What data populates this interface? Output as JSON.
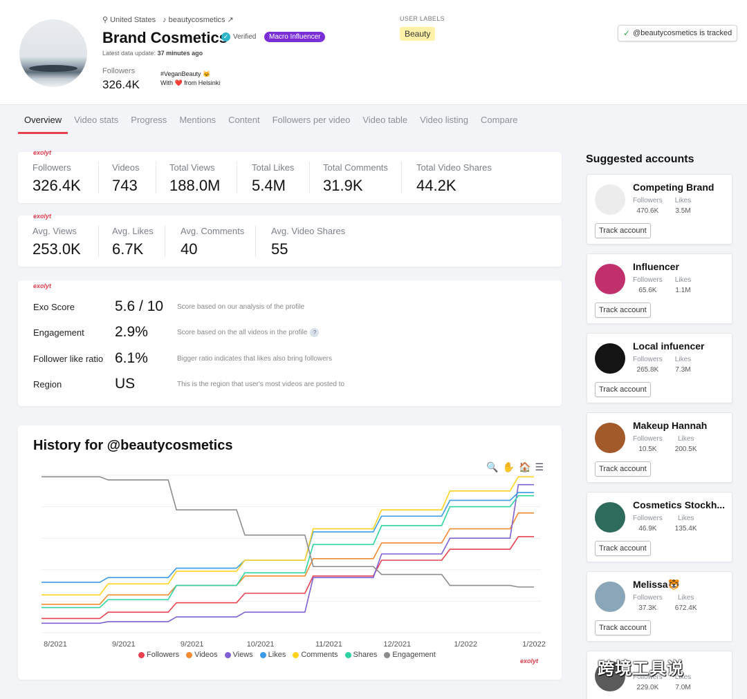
{
  "header": {
    "location": "United States",
    "handle": "beautycosmetics",
    "title": "Brand Cosmetics",
    "verified_label": "Verified",
    "badge": "Macro Influencer",
    "update_prefix": "Latest data update:",
    "update_value": "37 minutes ago",
    "followers_label": "Followers",
    "followers_value": "326.4K",
    "bio_line1": "#VeganBeauty 🐱",
    "bio_line2": "With ❤️ from Helsinki",
    "user_labels_title": "USER LABELS",
    "user_label": "Beauty",
    "tracked_text": "@beautycosmetics is tracked"
  },
  "tabs": [
    "Overview",
    "Video stats",
    "Progress",
    "Mentions",
    "Content",
    "Followers per video",
    "Video table",
    "Video listing",
    "Compare"
  ],
  "brand_tag": "exolyt",
  "totals": [
    {
      "label": "Followers",
      "value": "326.4K"
    },
    {
      "label": "Videos",
      "value": "743"
    },
    {
      "label": "Total Views",
      "value": "188.0M"
    },
    {
      "label": "Total Likes",
      "value": "5.4M"
    },
    {
      "label": "Total Comments",
      "value": "31.9K"
    },
    {
      "label": "Total Video Shares",
      "value": "44.2K"
    }
  ],
  "averages": [
    {
      "label": "Avg. Views",
      "value": "253.0K"
    },
    {
      "label": "Avg. Likes",
      "value": "6.7K"
    },
    {
      "label": "Avg. Comments",
      "value": "40"
    },
    {
      "label": "Avg. Video Shares",
      "value": "55"
    }
  ],
  "scores": [
    {
      "name": "Exo Score",
      "value": "5.6 / 10",
      "desc": "Score based on our analysis of the profile"
    },
    {
      "name": "Engagement",
      "value": "2.9%",
      "desc": "Score based on the all videos in the profile"
    },
    {
      "name": "Follower like ratio",
      "value": "6.1%",
      "desc": "Bigger ratio indicates that likes also bring followers"
    },
    {
      "name": "Region",
      "value": "US",
      "desc": "This is the region that user's most videos are posted to"
    }
  ],
  "history": {
    "title": "History for @beautycosmetics",
    "help_mark": "?"
  },
  "chart_data": {
    "type": "line",
    "title": "History for @beautycosmetics",
    "x": [
      "8/2021",
      "9/2021",
      "9/2021",
      "10/2021",
      "11/2021",
      "12/2021",
      "1/2022",
      "1/2022"
    ],
    "series": [
      {
        "name": "Followers",
        "color": "#e8404f",
        "values": [
          0.09,
          0.13,
          0.19,
          0.25,
          0.36,
          0.46,
          0.53,
          0.61
        ]
      },
      {
        "name": "Videos",
        "color": "#f28a30",
        "values": [
          0.18,
          0.24,
          0.3,
          0.36,
          0.47,
          0.57,
          0.66,
          0.76
        ]
      },
      {
        "name": "Views",
        "color": "#7e5fd6",
        "values": [
          0.06,
          0.07,
          0.1,
          0.13,
          0.35,
          0.5,
          0.6,
          0.94
        ]
      },
      {
        "name": "Likes",
        "color": "#3a9be6",
        "values": [
          0.32,
          0.35,
          0.41,
          0.46,
          0.64,
          0.74,
          0.84,
          0.89
        ]
      },
      {
        "name": "Comments",
        "color": "#ffd21f",
        "values": [
          0.24,
          0.31,
          0.39,
          0.46,
          0.66,
          0.78,
          0.9,
          0.99
        ]
      },
      {
        "name": "Shares",
        "color": "#2bd4a0",
        "values": [
          0.16,
          0.21,
          0.3,
          0.38,
          0.56,
          0.68,
          0.8,
          0.87
        ]
      },
      {
        "name": "Engagement",
        "color": "#8c8c8c",
        "values": [
          0.99,
          0.97,
          0.78,
          0.62,
          0.42,
          0.37,
          0.3,
          0.29
        ]
      }
    ],
    "legend_position": "bottom",
    "grid": true
  },
  "chart_tools": [
    "🔍",
    "✋",
    "🏠",
    "☰"
  ],
  "suggested": {
    "title": "Suggested accounts",
    "followers_label": "Followers",
    "likes_label": "Likes",
    "button_label": "Track account",
    "accounts": [
      {
        "name": "Competing Brand",
        "followers": "470.6K",
        "likes": "3.5M",
        "avatar": "#ececec"
      },
      {
        "name": "Influencer",
        "followers": "65.6K",
        "likes": "1.1M",
        "avatar": "#c0306a"
      },
      {
        "name": "Local infuencer",
        "followers": "265.8K",
        "likes": "7.3M",
        "avatar": "#141414"
      },
      {
        "name": "Makeup Hannah",
        "followers": "10.5K",
        "likes": "200.5K",
        "avatar": "#a35a2a"
      },
      {
        "name": "Cosmetics Stockh...",
        "followers": "46.9K",
        "likes": "135.4K",
        "avatar": "#2f6b5c"
      },
      {
        "name": "Melissa🐯",
        "followers": "37.3K",
        "likes": "672.4K",
        "avatar": "#8aa6b8"
      },
      {
        "name": "",
        "followers": "229.0K",
        "likes": "7.0M",
        "avatar": "#5a5a5a"
      }
    ]
  },
  "watermark": "跨境工具说"
}
